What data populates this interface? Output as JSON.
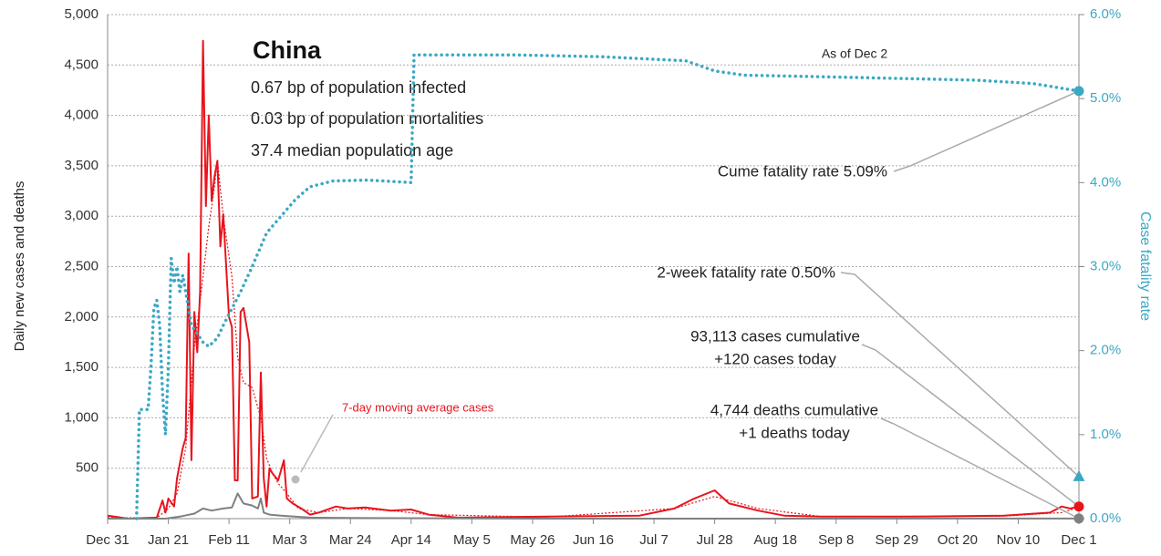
{
  "chart_data": {
    "type": "line",
    "title": "China",
    "stats": [
      "0.67 bp of population infected",
      "0.03 bp of population mortalities",
      "37.4 median population age"
    ],
    "note": "As of Dec 2",
    "ylabel": "Daily new cases and deaths",
    "y2label": "Case fatality rate",
    "xlim": [
      0,
      336
    ],
    "xticks": [
      {
        "value": 0,
        "label": "Dec 31"
      },
      {
        "value": 21,
        "label": "Jan 21"
      },
      {
        "value": 42,
        "label": "Feb 11"
      },
      {
        "value": 63,
        "label": "Mar 3"
      },
      {
        "value": 84,
        "label": "Mar 24"
      },
      {
        "value": 105,
        "label": "Apr 14"
      },
      {
        "value": 126,
        "label": "May 5"
      },
      {
        "value": 147,
        "label": "May 26"
      },
      {
        "value": 168,
        "label": "Jun 16"
      },
      {
        "value": 189,
        "label": "Jul 7"
      },
      {
        "value": 210,
        "label": "Jul 28"
      },
      {
        "value": 231,
        "label": "Aug 18"
      },
      {
        "value": 252,
        "label": "Sep 8"
      },
      {
        "value": 273,
        "label": "Sep 29"
      },
      {
        "value": 294,
        "label": "Oct 20"
      },
      {
        "value": 315,
        "label": "Nov 10"
      },
      {
        "value": 336,
        "label": "Dec 1"
      }
    ],
    "ylim": [
      0,
      5000
    ],
    "yticks": [
      500,
      {
        "value": 1000,
        "label": "1,000"
      },
      {
        "value": 1500,
        "label": "1,500"
      },
      {
        "value": 2000,
        "label": "2,000"
      },
      {
        "value": 2500,
        "label": "2,500"
      },
      {
        "value": 3000,
        "label": "3,000"
      },
      {
        "value": 3500,
        "label": "3,500"
      },
      {
        "value": 4000,
        "label": "4,000"
      },
      {
        "value": 4500,
        "label": "4,500"
      },
      {
        "value": 5000,
        "label": "5,000"
      }
    ],
    "y2lim": [
      0,
      6
    ],
    "y2ticks": [
      {
        "value": 0,
        "label": "0.0%"
      },
      {
        "value": 1,
        "label": "1.0%"
      },
      {
        "value": 2,
        "label": "2.0%"
      },
      {
        "value": 3,
        "label": "3.0%"
      },
      {
        "value": 4,
        "label": "4.0%"
      },
      {
        "value": 5,
        "label": "5.0%"
      },
      {
        "value": 6,
        "label": "6.0%"
      }
    ],
    "grid": true,
    "series": [
      {
        "color": "#e8141c",
        "style": "solid",
        "x": [
          0,
          7,
          17,
          19,
          20,
          21,
          23,
          24,
          26,
          27,
          28,
          29,
          30,
          31,
          32,
          33,
          34,
          35,
          36,
          37,
          38,
          39,
          40,
          42,
          43,
          44,
          45,
          46,
          47,
          49,
          50,
          52,
          53,
          54,
          55,
          56,
          57,
          59,
          61,
          62,
          64,
          67,
          70,
          73,
          79,
          83,
          89,
          98,
          105,
          111,
          121,
          152,
          184,
          196,
          203,
          210,
          215,
          225,
          234,
          247,
          278,
          310,
          326,
          330,
          333,
          336
        ],
        "values": [
          30,
          0,
          10,
          180,
          60,
          200,
          120,
          400,
          700,
          800,
          2630,
          580,
          2050,
          1650,
          2250,
          4740,
          3100,
          4000,
          3150,
          3400,
          3550,
          2700,
          3020,
          2000,
          1900,
          380,
          380,
          2050,
          2090,
          1750,
          200,
          220,
          1450,
          400,
          120,
          500,
          450,
          380,
          580,
          200,
          150,
          100,
          40,
          60,
          120,
          100,
          110,
          80,
          90,
          40,
          10,
          20,
          30,
          100,
          200,
          280,
          150,
          80,
          30,
          20,
          20,
          30,
          60,
          120,
          100,
          120
        ]
      },
      {
        "name": "7-day moving average cases",
        "color": "#e8141c",
        "style": "dotted",
        "x": [
          0,
          17,
          21,
          24,
          27,
          30,
          33,
          35,
          37,
          38,
          40,
          43,
          45,
          47,
          50,
          53,
          55,
          57,
          59,
          62,
          66,
          73,
          83,
          98,
          111,
          152,
          196,
          210,
          225,
          247,
          310,
          330,
          336
        ],
        "values": [
          10,
          5,
          100,
          250,
          700,
          1700,
          2400,
          2900,
          3300,
          3550,
          3000,
          2400,
          1600,
          1350,
          1300,
          1000,
          600,
          450,
          350,
          250,
          100,
          60,
          100,
          80,
          40,
          15,
          100,
          220,
          100,
          20,
          25,
          60,
          110
        ]
      },
      {
        "color": "#808080",
        "style": "solid",
        "x": [
          0,
          20,
          25,
          30,
          33,
          36,
          40,
          43,
          45,
          47,
          50,
          52,
          53,
          54,
          56,
          60,
          70,
          90,
          150,
          336
        ],
        "values": [
          0,
          0,
          20,
          50,
          100,
          80,
          100,
          110,
          250,
          150,
          130,
          100,
          200,
          60,
          40,
          30,
          10,
          5,
          0,
          1
        ]
      },
      {
        "color": "#3ba8c4",
        "style": "dotted",
        "axis": "y2",
        "x": [
          10,
          11,
          14,
          15,
          16,
          17,
          18,
          19,
          20,
          21,
          22,
          23,
          24,
          25,
          26,
          27,
          29,
          31,
          33,
          35,
          38,
          40,
          43,
          46,
          50,
          55,
          60,
          65,
          70,
          78,
          90,
          105,
          106,
          140,
          170,
          200,
          210,
          220,
          260,
          300,
          320,
          336
        ],
        "values": [
          0,
          1.3,
          1.3,
          1.8,
          2.5,
          2.6,
          2.3,
          1.5,
          1.0,
          1.8,
          3.1,
          2.8,
          3.0,
          2.7,
          2.9,
          2.7,
          2.3,
          2.2,
          2.1,
          2.05,
          2.15,
          2.3,
          2.5,
          2.7,
          3.0,
          3.4,
          3.6,
          3.8,
          3.95,
          4.02,
          4.03,
          4.0,
          5.52,
          5.52,
          5.5,
          5.45,
          5.33,
          5.28,
          5.25,
          5.22,
          5.18,
          5.09
        ]
      }
    ],
    "annotations": [
      {
        "lines": [
          "Cume fatality rate 5.09%"
        ],
        "value": 5.09,
        "axis": "y2",
        "color": "#3ba8c4",
        "shape": "circle"
      },
      {
        "lines": [
          "2-week fatality rate 0.50%"
        ],
        "value": 0.5,
        "axis": "y2",
        "color": "#3ba8c4",
        "shape": "triangle"
      },
      {
        "lines": [
          "93,113 cases cumulative",
          "+120 cases today"
        ],
        "value": 120,
        "axis": "y",
        "color": "#e8141c",
        "shape": "circle"
      },
      {
        "lines": [
          "4,744 deaths cumulative",
          "+1 deaths today"
        ],
        "value": 1,
        "axis": "y",
        "color": "#808080",
        "shape": "circle"
      }
    ]
  }
}
